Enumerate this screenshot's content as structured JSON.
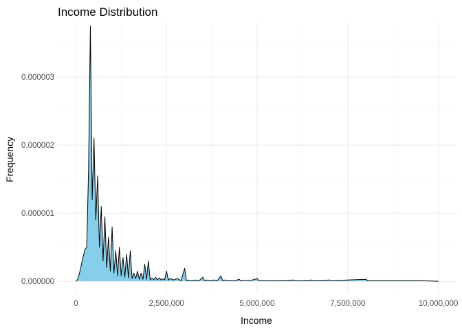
{
  "chart_data": {
    "type": "area",
    "title": "Income Distribution",
    "xlabel": "Income",
    "ylabel": "Frequency",
    "xlim": [
      -500000,
      10500000
    ],
    "ylim": [
      -1.8e-07,
      3.8e-06
    ],
    "x_ticks": [
      0,
      2500000,
      5000000,
      7500000,
      10000000
    ],
    "x_tick_labels": [
      "0",
      "2,500,000",
      "5,000,000",
      "7,500,000",
      "10,000,000"
    ],
    "y_ticks": [
      0,
      1e-06,
      2e-06,
      3e-06
    ],
    "y_tick_labels": [
      "0.000000",
      "0.000001",
      "0.000002",
      "0.000003"
    ],
    "grid": true,
    "fill_color": "#87CEEB",
    "line_color": "#000000",
    "x": [
      0,
      50000,
      100000,
      150000,
      200000,
      250000,
      300000,
      350000,
      400000,
      450000,
      500000,
      550000,
      600000,
      650000,
      700000,
      750000,
      800000,
      850000,
      900000,
      950000,
      1000000,
      1050000,
      1100000,
      1150000,
      1200000,
      1250000,
      1300000,
      1350000,
      1400000,
      1450000,
      1500000,
      1550000,
      1600000,
      1650000,
      1700000,
      1750000,
      1800000,
      1850000,
      1900000,
      1950000,
      2000000,
      2050000,
      2100000,
      2150000,
      2200000,
      2250000,
      2300000,
      2350000,
      2400000,
      2450000,
      2500000,
      2550000,
      2600000,
      2700000,
      2800000,
      2900000,
      3000000,
      3050000,
      3100000,
      3200000,
      3300000,
      3400000,
      3500000,
      3550000,
      3600000,
      3700000,
      3800000,
      3900000,
      4000000,
      4050000,
      4100000,
      4200000,
      4300000,
      4400000,
      4500000,
      4550000,
      4600000,
      4800000,
      5000000,
      5050000,
      5100000,
      5300000,
      5500000,
      5700000,
      6000000,
      6050000,
      6100000,
      6300000,
      6500000,
      6550000,
      6600000,
      7000000,
      7050000,
      7100000,
      7500000,
      8000000,
      8050000,
      8100000,
      8500000,
      9000000,
      9500000,
      10000000
    ],
    "y": [
      0,
      3e-08,
      1.2e-07,
      2.4e-07,
      3.6e-07,
      4.7e-07,
      5e-07,
      1.65e-06,
      3.75e-06,
      1.2e-06,
      2.1e-06,
      9e-07,
      1.55e-06,
      5e-07,
      1.1e-06,
      3e-07,
      9.5e-07,
      2e-07,
      6.5e-07,
      1.5e-07,
      8e-07,
      1.2e-07,
      4.5e-07,
      8e-08,
      5e-07,
      8e-08,
      3.5e-07,
      6e-08,
      4e-07,
      5e-08,
      4.5e-07,
      4e-08,
      1.2e-07,
      4e-08,
      1.5e-07,
      3e-08,
      1.2e-07,
      3e-08,
      2.5e-07,
      3e-08,
      3e-07,
      2e-08,
      5e-08,
      2e-08,
      6e-08,
      2e-08,
      5e-08,
      2e-08,
      4e-08,
      2e-08,
      1.5e-07,
      2e-08,
      4e-08,
      2e-08,
      4e-08,
      1e-08,
      1.9e-07,
      1e-08,
      2e-08,
      1e-08,
      2e-08,
      1e-08,
      6e-08,
      1e-08,
      2e-08,
      1e-08,
      2e-08,
      1e-08,
      8e-08,
      1e-08,
      2e-08,
      1e-08,
      1e-08,
      1e-08,
      3e-08,
      1e-08,
      1e-08,
      1e-08,
      4e-08,
      1e-08,
      1e-08,
      1e-08,
      1e-08,
      1e-08,
      2e-08,
      1e-08,
      1e-08,
      1e-08,
      2e-08,
      1e-08,
      1e-08,
      2e-08,
      1e-08,
      1e-08,
      2e-08,
      3e-08,
      1e-08,
      1e-08,
      1e-08,
      1e-08,
      1e-08,
      0
    ]
  }
}
